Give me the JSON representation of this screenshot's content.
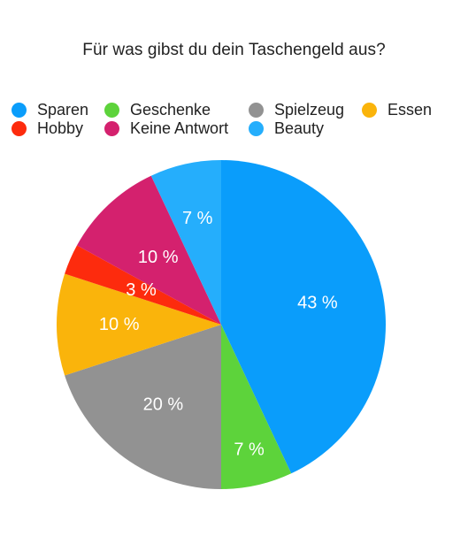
{
  "chart_data": {
    "type": "pie",
    "title": "Für was gibst du dein Taschengeld aus?",
    "legend_position": "top",
    "unit": "%",
    "slices": [
      {
        "name": "Sparen",
        "value": 43,
        "label": "43 %",
        "color": "#0a9dfb"
      },
      {
        "name": "Geschenke",
        "value": 7,
        "label": "7 %",
        "color": "#5dd33b"
      },
      {
        "name": "Spielzeug",
        "value": 20,
        "label": "20 %",
        "color": "#929292"
      },
      {
        "name": "Essen",
        "value": 10,
        "label": "10 %",
        "color": "#fab40b"
      },
      {
        "name": "Hobby",
        "value": 3,
        "label": "3 %",
        "color": "#fd2b0d"
      },
      {
        "name": "Keine Antwort",
        "value": 10,
        "label": "10 %",
        "color": "#d4216e"
      },
      {
        "name": "Beauty",
        "value": 7,
        "label": "7 %",
        "color": "#25aefc"
      }
    ]
  }
}
